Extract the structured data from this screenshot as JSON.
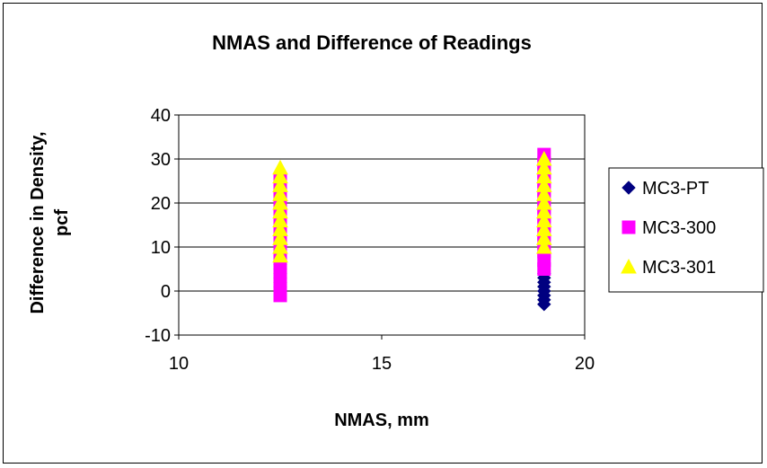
{
  "chart_data": {
    "type": "scatter",
    "title": "NMAS and Difference of Readings",
    "xlabel": "NMAS, mm",
    "ylabel_line1": "Difference in Density,",
    "ylabel_line2": "pcf",
    "xlim": [
      10,
      20
    ],
    "ylim": [
      -10,
      40
    ],
    "xticks": [
      "10",
      "15",
      "20"
    ],
    "yticks": [
      "-10",
      "0",
      "10",
      "20",
      "30",
      "40"
    ],
    "grid": "horizontal",
    "legend_position": "right",
    "series": [
      {
        "name": "MC3-PT",
        "marker": "diamond",
        "color": "#000080",
        "points": [
          [
            12.5,
            1
          ],
          [
            12.5,
            2
          ],
          [
            12.5,
            3
          ],
          [
            12.5,
            4
          ],
          [
            12.5,
            5
          ],
          [
            12.5,
            6
          ],
          [
            19,
            -3
          ],
          [
            19,
            -2
          ],
          [
            19,
            -1
          ],
          [
            19,
            0
          ],
          [
            19,
            1
          ],
          [
            19,
            2
          ],
          [
            19,
            3
          ],
          [
            19,
            4
          ]
        ]
      },
      {
        "name": "MC3-300",
        "marker": "square",
        "color": "#ff00ff",
        "points": [
          [
            12.5,
            -1
          ],
          [
            12.5,
            1
          ],
          [
            12.5,
            3
          ],
          [
            12.5,
            5
          ],
          [
            12.5,
            7
          ],
          [
            12.5,
            9
          ],
          [
            12.5,
            11
          ],
          [
            12.5,
            13
          ],
          [
            12.5,
            15
          ],
          [
            12.5,
            17
          ],
          [
            12.5,
            19
          ],
          [
            12.5,
            21
          ],
          [
            12.5,
            23
          ],
          [
            12.5,
            25
          ],
          [
            19,
            5
          ],
          [
            19,
            7
          ],
          [
            19,
            9
          ],
          [
            19,
            11
          ],
          [
            19,
            13
          ],
          [
            19,
            15
          ],
          [
            19,
            17
          ],
          [
            19,
            19
          ],
          [
            19,
            21
          ],
          [
            19,
            23
          ],
          [
            19,
            25
          ],
          [
            19,
            27
          ],
          [
            19,
            29
          ],
          [
            19,
            31
          ]
        ]
      },
      {
        "name": "MC3-301",
        "marker": "triangle",
        "color": "#ffff00",
        "points": [
          [
            12.5,
            8
          ],
          [
            12.5,
            10
          ],
          [
            12.5,
            12
          ],
          [
            12.5,
            14
          ],
          [
            12.5,
            16
          ],
          [
            12.5,
            18
          ],
          [
            12.5,
            20
          ],
          [
            12.5,
            22
          ],
          [
            12.5,
            24
          ],
          [
            12.5,
            26
          ],
          [
            12.5,
            28
          ],
          [
            19,
            10
          ],
          [
            19,
            12
          ],
          [
            19,
            14
          ],
          [
            19,
            16
          ],
          [
            19,
            18
          ],
          [
            19,
            20
          ],
          [
            19,
            22
          ],
          [
            19,
            24
          ],
          [
            19,
            26
          ],
          [
            19,
            28
          ],
          [
            19,
            30
          ]
        ]
      }
    ]
  }
}
